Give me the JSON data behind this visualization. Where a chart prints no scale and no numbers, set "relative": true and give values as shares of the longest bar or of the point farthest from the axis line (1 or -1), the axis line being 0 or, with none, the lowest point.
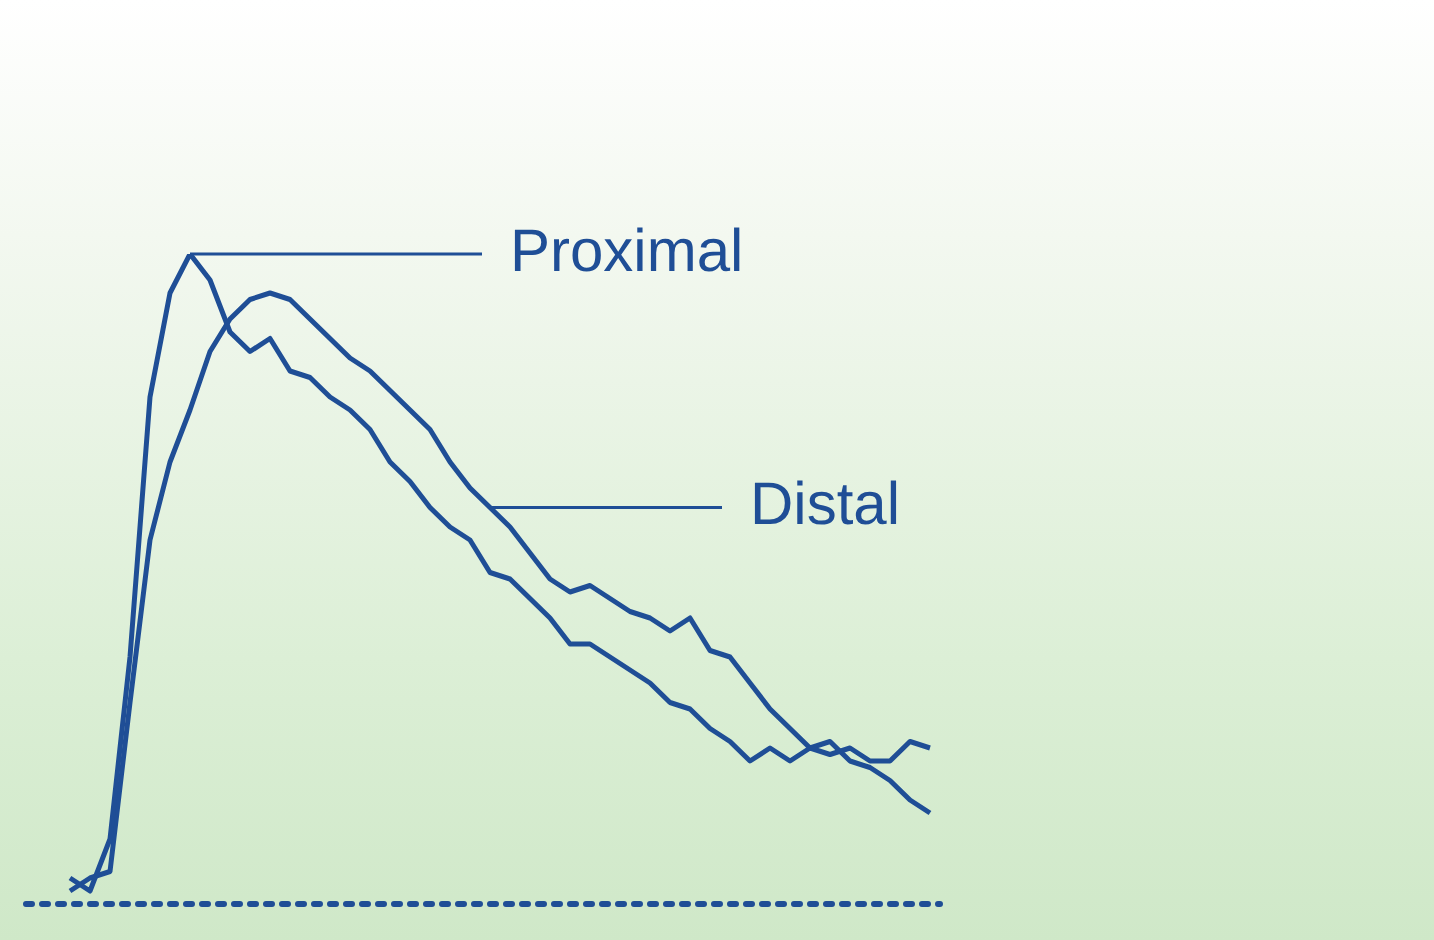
{
  "chart_data": {
    "type": "line",
    "relative": true,
    "categories": [
      null,
      null,
      null,
      null,
      null,
      null,
      null,
      null,
      null,
      null,
      null,
      null,
      null,
      null,
      null,
      null,
      null,
      null,
      null,
      null,
      null,
      null,
      null,
      null,
      null,
      null,
      null,
      null,
      null,
      null,
      null,
      null,
      null,
      null,
      null,
      null,
      null,
      null,
      null,
      null,
      null,
      null,
      null,
      null
    ],
    "series": [
      {
        "name": "Proximal",
        "color": "#1f4e96",
        "values": [
          0.04,
          0.02,
          0.1,
          0.38,
          0.78,
          0.94,
          1,
          0.96,
          0.88,
          0.85,
          0.87,
          0.82,
          0.81,
          0.78,
          0.76,
          0.73,
          0.68,
          0.65,
          0.61,
          0.58,
          0.56,
          0.51,
          0.5,
          0.47,
          0.44,
          0.4,
          0.4,
          0.38,
          0.36,
          0.34,
          0.31,
          0.3,
          0.27,
          0.25,
          0.22,
          0.24,
          0.22,
          0.24,
          0.23,
          0.24,
          0.22,
          0.22,
          0.25,
          0.24
        ]
      },
      {
        "name": "Distal",
        "color": "#1f4e96",
        "values": [
          0.02,
          0.04,
          0.05,
          0.31,
          0.56,
          0.68,
          0.76,
          0.85,
          0.9,
          0.93,
          0.94,
          0.93,
          0.9,
          0.87,
          0.84,
          0.82,
          0.79,
          0.76,
          0.73,
          0.68,
          0.64,
          0.61,
          0.58,
          0.54,
          0.5,
          0.48,
          0.49,
          0.47,
          0.45,
          0.44,
          0.42,
          0.44,
          0.39,
          0.38,
          0.34,
          0.3,
          0.27,
          0.24,
          0.25,
          0.22,
          0.21,
          0.19,
          0.16,
          0.14
        ]
      }
    ],
    "ref_lines": [
      {
        "axis": "y",
        "value": 0,
        "color": "#1f4e96",
        "line_style": "dotted"
      }
    ],
    "legend": "right",
    "marker": "none",
    "line_style": "solid"
  }
}
